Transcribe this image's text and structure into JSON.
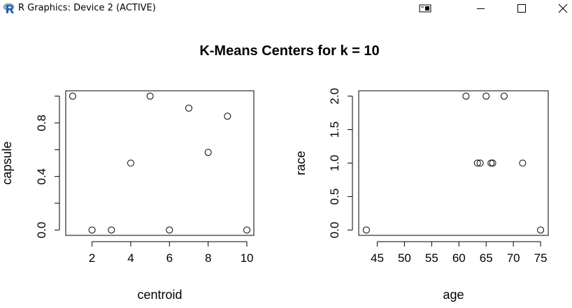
{
  "window": {
    "title": "R Graphics: Device 2 (ACTIVE)",
    "icon": "r-logo-icon",
    "controls": [
      "restore-icon",
      "minimize-icon",
      "maximize-icon",
      "close-icon"
    ]
  },
  "figure": {
    "title": "K-Means Centers for k = 10"
  },
  "chart_data": [
    {
      "type": "scatter",
      "xlabel": "centroid",
      "ylabel": "capsule",
      "xlim": [
        0.64,
        10.36
      ],
      "ylim": [
        -0.04,
        1.04
      ],
      "x_ticks": [
        2,
        4,
        6,
        8,
        10
      ],
      "y_ticks": [
        0.0,
        0.4,
        0.8
      ],
      "y_minor_ticks": [
        0.2,
        0.6,
        1.0
      ],
      "x_tick_labels": [
        "2",
        "4",
        "6",
        "8",
        "10"
      ],
      "y_tick_labels": [
        "0.0",
        "0.4",
        "0.8"
      ],
      "grid": false,
      "points": [
        {
          "x": 1,
          "y": 1.0
        },
        {
          "x": 2,
          "y": 0.0
        },
        {
          "x": 3,
          "y": 0.0
        },
        {
          "x": 4,
          "y": 0.5
        },
        {
          "x": 5,
          "y": 1.0
        },
        {
          "x": 6,
          "y": 0.0
        },
        {
          "x": 7,
          "y": 0.91
        },
        {
          "x": 8,
          "y": 0.58
        },
        {
          "x": 9,
          "y": 0.85
        },
        {
          "x": 10,
          "y": 0.0
        }
      ]
    },
    {
      "type": "scatter",
      "xlabel": "age",
      "ylabel": "race",
      "xlim": [
        41.6,
        76.4
      ],
      "ylim": [
        -0.08,
        2.08
      ],
      "x_ticks": [
        45,
        50,
        55,
        60,
        65,
        70,
        75
      ],
      "y_ticks": [
        0.0,
        0.5,
        1.0,
        1.5,
        2.0
      ],
      "x_tick_labels": [
        "45",
        "50",
        "55",
        "60",
        "65",
        "70",
        "75"
      ],
      "y_tick_labels": [
        "0.0",
        "0.5",
        "1.0",
        "1.5",
        "2.0"
      ],
      "grid": false,
      "points": [
        {
          "x": 43.0,
          "y": 0.0
        },
        {
          "x": 61.3,
          "y": 2.0
        },
        {
          "x": 63.4,
          "y": 1.0
        },
        {
          "x": 63.9,
          "y": 1.0
        },
        {
          "x": 65.0,
          "y": 2.0
        },
        {
          "x": 65.9,
          "y": 1.0
        },
        {
          "x": 66.2,
          "y": 1.0
        },
        {
          "x": 68.3,
          "y": 2.0
        },
        {
          "x": 71.7,
          "y": 1.0
        },
        {
          "x": 75.0,
          "y": 0.0
        }
      ]
    }
  ]
}
